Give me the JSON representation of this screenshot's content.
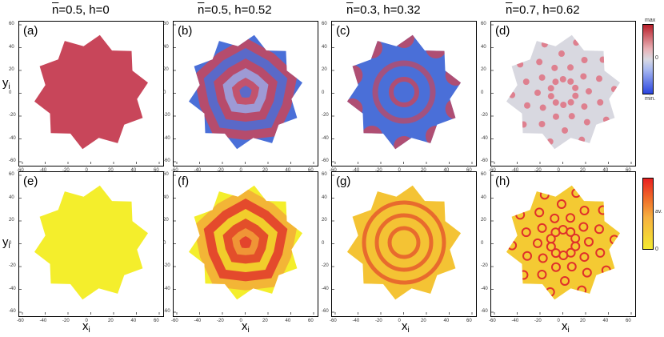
{
  "columns": [
    {
      "nbar": "n",
      "rest": "=0.5, h=0"
    },
    {
      "nbar": "n",
      "rest": "=0.5, h=0.52"
    },
    {
      "nbar": "n",
      "rest": "=0.3, h=0.32"
    },
    {
      "nbar": "n",
      "rest": "=0.7, h=0.62"
    }
  ],
  "panels_top": [
    "(a)",
    "(b)",
    "(c)",
    "(d)"
  ],
  "panels_bottom": [
    "(e)",
    "(f)",
    "(g)",
    "(h)"
  ],
  "axes": {
    "x_ticks": [
      "-60",
      "-40",
      "-20",
      "0",
      "20",
      "40",
      "60"
    ],
    "y_ticks": [
      "60",
      "40",
      "20",
      "0",
      "-20",
      "-40",
      "-60"
    ],
    "x_label": "x",
    "x_sub": "i",
    "y_label": "y",
    "y_sub": "i"
  },
  "colorbar_top": {
    "max": "max",
    "mid": "0",
    "min": "min."
  },
  "colorbar_bottom": {
    "mid": "av.",
    "min": "0"
  },
  "colors": {
    "red": "#c8465a",
    "blue": "#4a6fd8",
    "grey": "#d8d8e0",
    "yellow": "#f4ee2c",
    "orange": "#f3a63a",
    "deepred": "#e0302a"
  }
}
